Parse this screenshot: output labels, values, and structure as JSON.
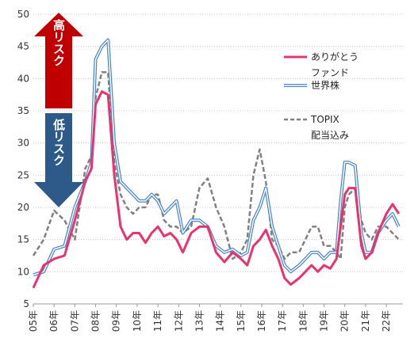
{
  "chart_data": {
    "type": "line",
    "ylim": [
      5,
      50
    ],
    "yticks": [
      5,
      10,
      15,
      20,
      25,
      30,
      35,
      40,
      45,
      50
    ],
    "xticks": [
      "05年",
      "06年",
      "07年",
      "08年",
      "09年",
      "10年",
      "11年",
      "12年",
      "13年",
      "14年",
      "15年",
      "16年",
      "17年",
      "18年",
      "19年",
      "20年",
      "21年",
      "22年"
    ],
    "grid": "horizontal",
    "legend_placement": "right",
    "x": [
      2005.0,
      2005.5,
      2006.0,
      2006.5,
      2007.0,
      2007.5,
      2007.8,
      2008.0,
      2008.3,
      2008.6,
      2008.9,
      2009.2,
      2009.5,
      2009.8,
      2010.1,
      2010.4,
      2010.7,
      2011.0,
      2011.3,
      2011.6,
      2011.9,
      2012.2,
      2012.6,
      2013.0,
      2013.4,
      2013.8,
      2014.2,
      2014.6,
      2015.0,
      2015.3,
      2015.6,
      2015.9,
      2016.2,
      2016.5,
      2016.8,
      2017.1,
      2017.4,
      2017.8,
      2018.1,
      2018.4,
      2018.7,
      2019.0,
      2019.3,
      2019.6,
      2019.8,
      2020.0,
      2020.2,
      2020.5,
      2020.8,
      2021.0,
      2021.3,
      2021.6,
      2022.0,
      2022.3,
      2022.6
    ],
    "series": [
      {
        "name": "ありがとうファンド",
        "color": "#e8336d",
        "style": "solid",
        "values": [
          7.5,
          11,
          12,
          12.5,
          18,
          24,
          26,
          36,
          38,
          37.5,
          25,
          17,
          15,
          16,
          16,
          14.5,
          16,
          17,
          15.5,
          16,
          15,
          13,
          16,
          17,
          17,
          13,
          11.5,
          13,
          12,
          11,
          14,
          15,
          16.5,
          14,
          12,
          9,
          8,
          9,
          10,
          11,
          10,
          11,
          10.5,
          12,
          17,
          22,
          23,
          23,
          14,
          12,
          13,
          16,
          19,
          20.5,
          19
        ]
      },
      {
        "name": "世界株",
        "color": "#4a86c8",
        "style": "double",
        "values": [
          9.5,
          10,
          13.5,
          14,
          20,
          24,
          27,
          43,
          45,
          46,
          30,
          24,
          23,
          22,
          21,
          21,
          22,
          21,
          19,
          20,
          21,
          16,
          18,
          18,
          17,
          14,
          13,
          13.5,
          12.5,
          13,
          18,
          20,
          23,
          17,
          14,
          11,
          10,
          11,
          12,
          13,
          13,
          12,
          13,
          13,
          21,
          27,
          27,
          26.5,
          16,
          13,
          13,
          16,
          18,
          19,
          17
        ]
      },
      {
        "name": "TOPIX 配当込み",
        "color": "#808080",
        "style": "dashed",
        "values": [
          12.5,
          15,
          19.5,
          18,
          15,
          26,
          28,
          37,
          41,
          41,
          27,
          22,
          20,
          19,
          20,
          20,
          22,
          22,
          18,
          17,
          17,
          16,
          17,
          23,
          24.5,
          20,
          17,
          12,
          13,
          15,
          25,
          29,
          24,
          15,
          14,
          12,
          13,
          13,
          15,
          17,
          17,
          14,
          14,
          13,
          12,
          20,
          22,
          23,
          18,
          16,
          15,
          17,
          17,
          16,
          15
        ]
      }
    ]
  },
  "arrow": {
    "high_label": "高リスク",
    "low_label": "低リスク",
    "high_color": "#c00000",
    "low_color": "#2e5a8a"
  },
  "legend": [
    {
      "line1": "ありがとう",
      "line2": "ファンド"
    },
    {
      "line1": "世界株",
      "line2": ""
    },
    {
      "line1": "TOPIX",
      "line2": "配当込み"
    }
  ]
}
